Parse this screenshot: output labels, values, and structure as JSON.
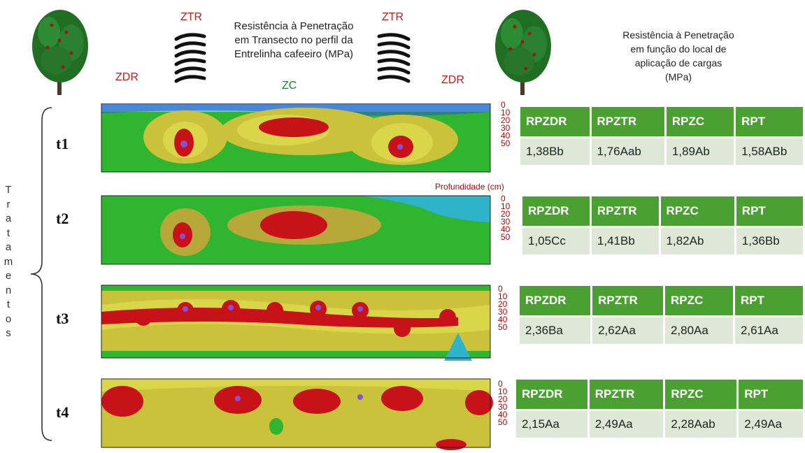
{
  "header": {
    "left_title_lines": [
      "Resistência à Penetração",
      "em Transecto no perfil da",
      "Entrelinha cafeeiro (MPa)"
    ],
    "right_title_lines": [
      "Resistência à Penetração",
      "em função do local de",
      "aplicação de cargas",
      "(MPa)"
    ],
    "zones": {
      "zdr_left": "ZDR",
      "ztr_left": "ZTR",
      "zc": "ZC",
      "ztr_right": "ZTR",
      "zdr_right": "ZDR"
    }
  },
  "vertical_label": "Tratamentos",
  "depth_axis": {
    "ticks": [
      "0",
      "10",
      "20",
      "30",
      "40",
      "50"
    ],
    "label": "Profundidade (cm)"
  },
  "treatments": [
    {
      "label": "t1",
      "headers": [
        "RPZDR",
        "RPZTR",
        "RPZC",
        "RPT"
      ],
      "values": [
        "1,38Bb",
        "1,76Aab",
        "1,89Ab",
        "1,58ABb"
      ]
    },
    {
      "label": "t2",
      "headers": [
        "RPZDR",
        "RPZTR",
        "RPZC",
        "RPT"
      ],
      "values": [
        "1,05Cc",
        "1,41Bb",
        "1,82Ab",
        "1,36Bb"
      ]
    },
    {
      "label": "t3",
      "headers": [
        "RPZDR",
        "RPZTR",
        "RPZC",
        "RPT"
      ],
      "values": [
        "2,36Ba",
        "2,62Aa",
        "2,80Aa",
        "2,61Aa"
      ]
    },
    {
      "label": "t4",
      "headers": [
        "RPZDR",
        "RPZTR",
        "RPZC",
        "RPT"
      ],
      "values": [
        "2,15Aa",
        "2,49Aa",
        "2,28Aab",
        "2,49Aa"
      ]
    }
  ],
  "colors": {
    "header_green": "#4aa031",
    "cell_green": "#dfe8d7",
    "zone_red": "#b22222",
    "zone_green": "#1f7a3a",
    "depth_red": "#c00000"
  }
}
